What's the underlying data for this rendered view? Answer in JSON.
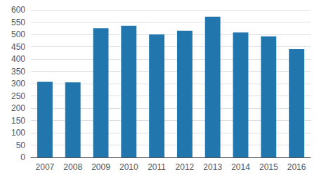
{
  "chart_data": {
    "type": "bar",
    "categories": [
      "2007",
      "2008",
      "2009",
      "2010",
      "2011",
      "2012",
      "2013",
      "2014",
      "2015",
      "2016"
    ],
    "values": [
      307,
      305,
      525,
      535,
      500,
      515,
      572,
      508,
      492,
      440
    ],
    "color": "#2176ae",
    "ylim": [
      0,
      600
    ],
    "yticks": [
      0,
      50,
      100,
      150,
      200,
      250,
      300,
      350,
      400,
      450,
      500,
      550,
      600
    ],
    "grid": true
  }
}
